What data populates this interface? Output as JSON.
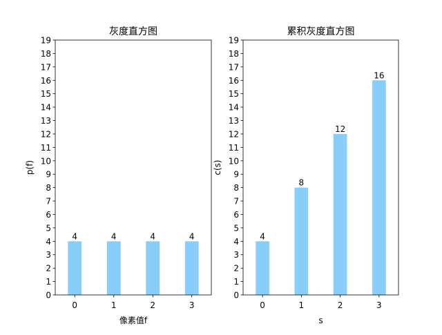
{
  "chart_data": [
    {
      "type": "bar",
      "title": "灰度直方图",
      "xlabel": "像素值f",
      "ylabel": "p(f)",
      "categories": [
        "0",
        "1",
        "2",
        "3"
      ],
      "values": [
        4,
        4,
        4,
        4
      ],
      "data_labels": [
        "4",
        "4",
        "4",
        "4"
      ],
      "ylim": [
        0,
        19
      ],
      "yticks": [
        "0",
        "1",
        "2",
        "3",
        "4",
        "5",
        "6",
        "7",
        "8",
        "9",
        "10",
        "11",
        "12",
        "13",
        "14",
        "15",
        "16",
        "17",
        "18",
        "19"
      ],
      "bar_color": "#87cefa",
      "grid": false,
      "legend": "none"
    },
    {
      "type": "bar",
      "title": "累积灰度直方图",
      "xlabel": "s",
      "ylabel": "c(s)",
      "categories": [
        "0",
        "1",
        "2",
        "3"
      ],
      "values": [
        4,
        8,
        12,
        16
      ],
      "data_labels": [
        "4",
        "8",
        "12",
        "16"
      ],
      "ylim": [
        0,
        19
      ],
      "yticks": [
        "0",
        "1",
        "2",
        "3",
        "4",
        "5",
        "6",
        "7",
        "8",
        "9",
        "10",
        "11",
        "12",
        "13",
        "14",
        "15",
        "16",
        "17",
        "18",
        "19"
      ],
      "bar_color": "#87cefa",
      "grid": false,
      "legend": "none"
    }
  ]
}
